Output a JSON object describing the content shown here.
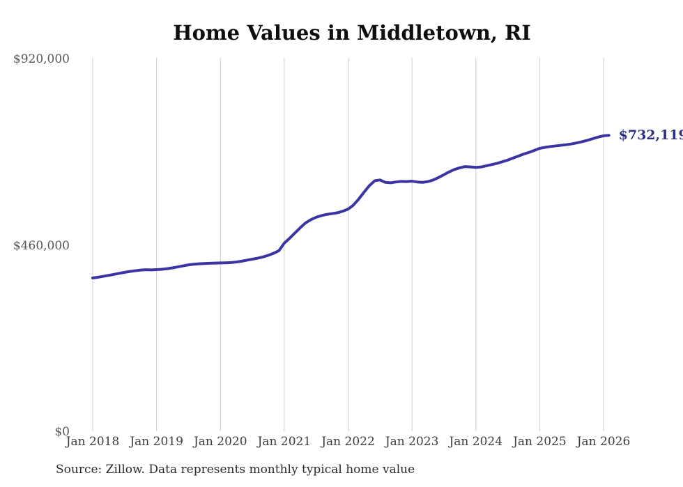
{
  "chart_data": {
    "type": "line",
    "title": "Home Values in Middletown, RI",
    "source": "Source: Zillow. Data represents monthly typical home value",
    "end_label": "$732,119",
    "end_value": 732119,
    "period": {
      "start": "Jan 2018",
      "end": "Feb 2026",
      "frequency": "monthly"
    },
    "x_tick_labels": [
      "Jan 2018",
      "Jan 2019",
      "Jan 2020",
      "Jan 2021",
      "Jan 2022",
      "Jan 2023",
      "Jan 2024",
      "Jan 2025",
      "Jan 2026"
    ],
    "y_ticks": [
      {
        "label": "$920,000",
        "value": 920000
      },
      {
        "label": "$460,000",
        "value": 460000
      },
      {
        "label": "$0",
        "value": 0
      }
    ],
    "ylim": [
      0,
      920000
    ],
    "grid": "vertical-only",
    "legend": "none",
    "line_color": "#3b35a3",
    "end_label_color": "#2c2e83",
    "grid_color": "#cccccc",
    "values": [
      380000,
      382000,
      384200,
      386500,
      389000,
      391500,
      394000,
      396200,
      398000,
      399500,
      400500,
      400000,
      400700,
      401500,
      403000,
      405000,
      407500,
      410000,
      412500,
      414000,
      415000,
      415800,
      416300,
      416800,
      417200,
      417500,
      418000,
      419500,
      421500,
      424000,
      426500,
      429000,
      432000,
      436000,
      441000,
      447500,
      466000,
      478000,
      491000,
      504000,
      516000,
      524000,
      530000,
      534000,
      537000,
      539000,
      541000,
      545000,
      550000,
      560000,
      575000,
      592000,
      608000,
      620000,
      622000,
      616000,
      615000,
      617000,
      618500,
      618000,
      619000,
      617000,
      616000,
      618000,
      622000,
      628000,
      635000,
      642000,
      648000,
      652000,
      655000,
      654000,
      653000,
      654000,
      657000,
      660000,
      663000,
      667000,
      671000,
      676000,
      681000,
      686000,
      690000,
      695000,
      700000,
      702500,
      704500,
      706000,
      707500,
      709000,
      711000,
      713500,
      716500,
      720000,
      724000,
      728000,
      731000,
      732119
    ]
  }
}
